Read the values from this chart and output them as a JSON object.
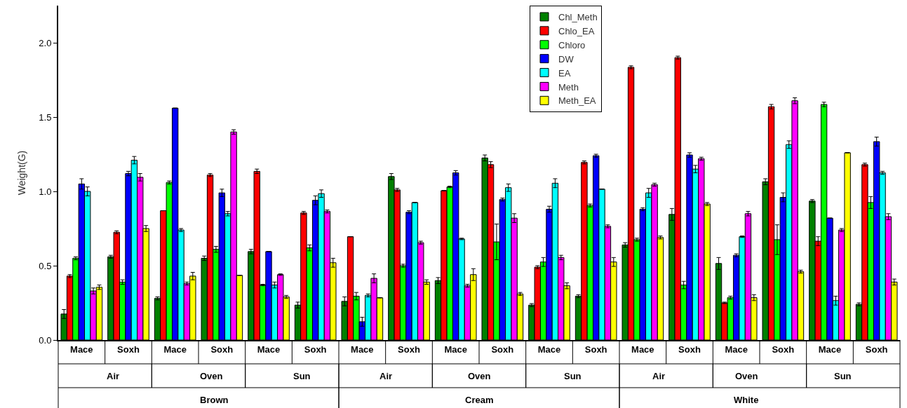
{
  "chart_data": {
    "type": "bar",
    "ylabel": "Weight(G)",
    "categories": [
      "Mace",
      "Soxh",
      "Mace",
      "Soxh",
      "Mace",
      "Soxh",
      "Mace",
      "Soxh",
      "Mace",
      "Soxh",
      "Mace",
      "Soxh",
      "Mace",
      "Soxh",
      "Mace",
      "Soxh",
      "Mace",
      "Soxh"
    ],
    "annotations": [
      "Air",
      "Oven",
      "Sun",
      "Air",
      "Oven",
      "Sun",
      "Air",
      "Oven",
      "Sun",
      "Brown",
      "Cream",
      "White"
    ],
    "ylim": [
      0,
      2.25
    ],
    "yticks": [
      {
        "value": 0,
        "label": "0.0"
      },
      {
        "value": 0.5,
        "label": "0.5"
      },
      {
        "value": 1,
        "label": "1.0"
      },
      {
        "value": 1.5,
        "label": "1.5"
      },
      {
        "value": 2,
        "label": "2.0"
      }
    ],
    "legend": "top",
    "grid": false,
    "series": [
      {
        "name": "Chl_Meth",
        "color": "#008000",
        "values": [
          0.175,
          0.56,
          0.28,
          0.55,
          0.595,
          0.235,
          0.26,
          1.1,
          0.4,
          1.225,
          0.235,
          0.295,
          0.64,
          0.845,
          0.515,
          1.065,
          0.935,
          0.24
        ],
        "errors": [
          0.03,
          0.01,
          0.01,
          0.015,
          0.015,
          0.02,
          0.03,
          0.02,
          0.02,
          0.02,
          0.01,
          0.01,
          0.015,
          0.04,
          0.04,
          0.02,
          0.01,
          0.01
        ]
      },
      {
        "name": "Chlo_EA",
        "color": "#ff0000",
        "values": [
          0.43,
          0.725,
          0.87,
          1.11,
          1.135,
          0.855,
          0.695,
          1.01,
          1.005,
          1.18,
          0.49,
          1.195,
          1.835,
          1.9,
          0.25,
          1.57,
          0.665,
          1.18
        ],
        "errors": [
          0.01,
          0.01,
          0,
          0.01,
          0.015,
          0.01,
          0,
          0.01,
          0,
          0.02,
          0.01,
          0.01,
          0.01,
          0.01,
          0.005,
          0.015,
          0.03,
          0.01
        ]
      },
      {
        "name": "Chloro",
        "color": "#00ff00",
        "values": [
          0.55,
          0.39,
          1.06,
          0.61,
          0.37,
          0.62,
          0.295,
          0.5,
          1.03,
          0.66,
          0.525,
          0.905,
          0.675,
          0.37,
          0.285,
          0.675,
          1.585,
          0.925
        ],
        "errors": [
          0.01,
          0.015,
          0.01,
          0.02,
          0.005,
          0.02,
          0.025,
          0.01,
          0.005,
          0.12,
          0.03,
          0.01,
          0.01,
          0.025,
          0.01,
          0.1,
          0.015,
          0.04
        ]
      },
      {
        "name": "DW",
        "color": "#0000ff",
        "values": [
          1.05,
          1.12,
          1.56,
          0.99,
          0.595,
          0.94,
          0.123,
          0.86,
          1.125,
          0.945,
          0.88,
          1.24,
          0.88,
          1.245,
          0.57,
          0.96,
          0.82,
          1.335
        ],
        "errors": [
          0.035,
          0.015,
          0,
          0.025,
          0,
          0.03,
          0.03,
          0.01,
          0.015,
          0.01,
          0.02,
          0.01,
          0.01,
          0.015,
          0.01,
          0.03,
          0,
          0.03
        ]
      },
      {
        "name": "EA",
        "color": "#00ffff",
        "values": [
          1.0,
          1.21,
          0.74,
          0.85,
          0.37,
          0.985,
          0.3,
          0.925,
          0.68,
          1.025,
          1.055,
          1.015,
          0.99,
          1.15,
          0.695,
          1.315,
          0.265,
          1.125
        ],
        "errors": [
          0.03,
          0.025,
          0.01,
          0.015,
          0.02,
          0.025,
          0.01,
          0,
          0.005,
          0.025,
          0.03,
          0,
          0.03,
          0.025,
          0.005,
          0.025,
          0.03,
          0.01
        ]
      },
      {
        "name": "Meth",
        "color": "#ff00ff",
        "values": [
          0.33,
          1.095,
          0.38,
          1.4,
          0.44,
          0.865,
          0.415,
          0.655,
          0.365,
          0.82,
          0.555,
          0.765,
          1.045,
          1.22,
          0.85,
          1.61,
          0.74,
          0.83
        ],
        "errors": [
          0.02,
          0.025,
          0.01,
          0.015,
          0.005,
          0.01,
          0.03,
          0.01,
          0.01,
          0.03,
          0.015,
          0.01,
          0.01,
          0.01,
          0.015,
          0.02,
          0.01,
          0.02
        ]
      },
      {
        "name": "Meth_EA",
        "color": "#ffff00",
        "values": [
          0.355,
          0.75,
          0.43,
          0.435,
          0.29,
          0.52,
          0.284,
          0.39,
          0.44,
          0.31,
          0.365,
          0.525,
          0.69,
          0.915,
          0.285,
          0.46,
          1.26,
          0.39
        ],
        "errors": [
          0.015,
          0.02,
          0.025,
          0,
          0.01,
          0.03,
          0,
          0.015,
          0.04,
          0.01,
          0.02,
          0.03,
          0.01,
          0.01,
          0.02,
          0.01,
          0,
          0.02
        ]
      }
    ]
  }
}
